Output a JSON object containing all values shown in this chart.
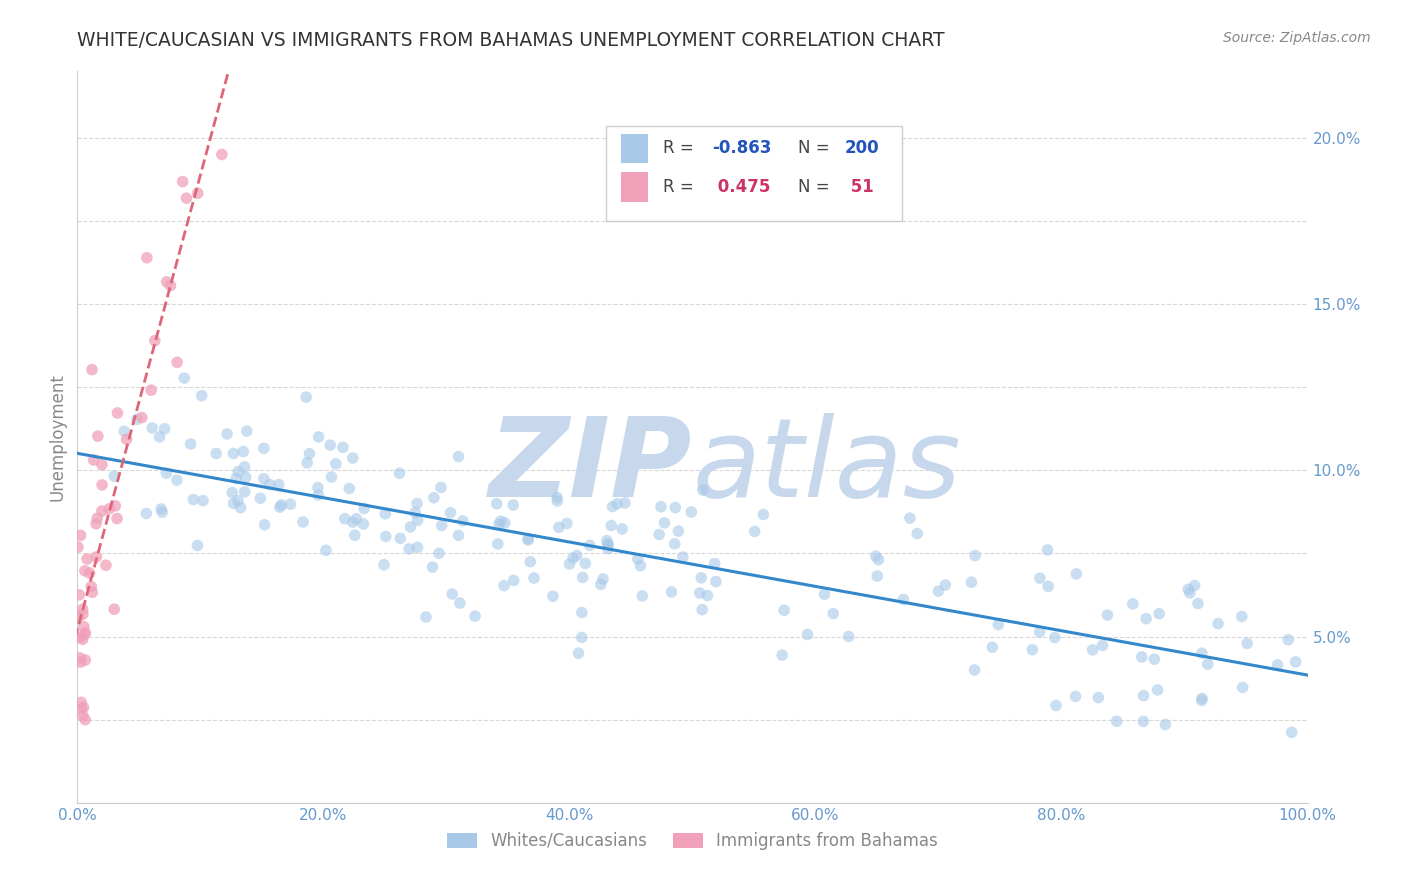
{
  "title": "WHITE/CAUCASIAN VS IMMIGRANTS FROM BAHAMAS UNEMPLOYMENT CORRELATION CHART",
  "source": "Source: ZipAtlas.com",
  "xlabel": "",
  "ylabel": "Unemployment",
  "xlim": [
    0,
    1.0
  ],
  "ylim": [
    0.0,
    0.22
  ],
  "xticks": [
    0.0,
    0.2,
    0.4,
    0.6,
    0.8,
    1.0
  ],
  "xticklabels": [
    "0.0%",
    "20.0%",
    "40.0%",
    "60.0%",
    "80.0%",
    "100.0%"
  ],
  "yticks_right": [
    0.05,
    0.1,
    0.15,
    0.2
  ],
  "yticklabels_right": [
    "5.0%",
    "10.0%",
    "15.0%",
    "20.0%"
  ],
  "blue_R": -0.863,
  "blue_N": 200,
  "pink_R": 0.475,
  "pink_N": 51,
  "legend_label_blue": "Whites/Caucasians",
  "legend_label_pink": "Immigrants from Bahamas",
  "blue_color": "#a8c8e8",
  "pink_color": "#f0a0b8",
  "blue_line_color": "#3388cc",
  "pink_line_color": "#dd6677",
  "watermark_zip": "ZIP",
  "watermark_atlas": "atlas",
  "watermark_color": "#c8d8ec",
  "background_color": "#ffffff",
  "grid_color": "#d8d8d8",
  "title_color": "#333333",
  "axis_label_color": "#888888",
  "tick_label_color": "#6699cc",
  "legend_R_color_blue": "#2255bb",
  "legend_R_color_pink": "#cc3366",
  "legend_box_border": "#cccccc"
}
